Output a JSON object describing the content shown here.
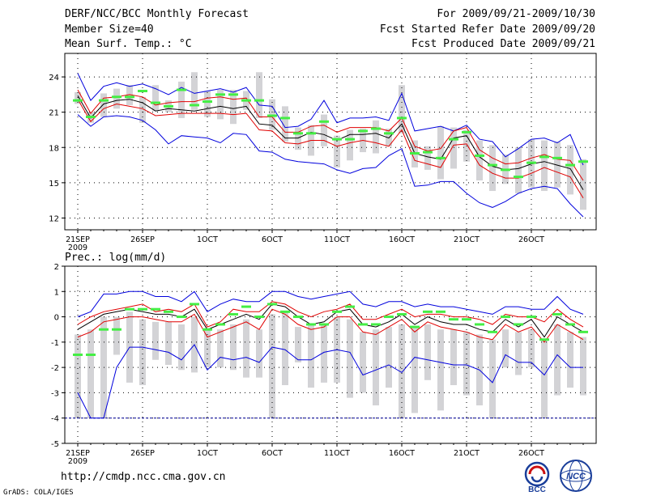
{
  "header": {
    "title": "DERF/NCC/BCC Monthly Forecast",
    "member_size": "Member Size=40",
    "variable": "Mean Surf. Temp.: °C",
    "period": "For 2009/09/21-2009/10/30",
    "start_date": "Fcst Started Refer Date 2009/09/20",
    "produced_date": "Fcst Produced Date 2009/09/21"
  },
  "footer": {
    "url": "http://cmdp.ncc.cma.gov.cn",
    "credit": "GrADS: COLA/IGES",
    "logo1_text": "BCC",
    "logo2_text": "NCC"
  },
  "colors": {
    "box": "#d3d3d6",
    "mean_line": "#000000",
    "spread_line": "#e00000",
    "extreme_line": "#0000dd",
    "median_mark": "#44ee44",
    "grid": "#000000",
    "threshold": "#000099"
  },
  "chart_data": [
    {
      "type": "box-ensemble",
      "title": "Mean Surf. Temp.: °C",
      "x_dates": [
        "09-21",
        "09-22",
        "09-23",
        "09-24",
        "09-25",
        "09-26",
        "09-27",
        "09-28",
        "09-29",
        "09-30",
        "10-01",
        "10-02",
        "10-03",
        "10-04",
        "10-05",
        "10-06",
        "10-07",
        "10-08",
        "10-09",
        "10-10",
        "10-11",
        "10-12",
        "10-13",
        "10-14",
        "10-15",
        "10-16",
        "10-17",
        "10-18",
        "10-19",
        "10-20",
        "10-21",
        "10-22",
        "10-23",
        "10-24",
        "10-25",
        "10-26",
        "10-27",
        "10-28",
        "10-29",
        "10-30"
      ],
      "tick_labels": [
        "21SEP",
        "26SEP",
        "1OCT",
        "6OCT",
        "11OCT",
        "16OCT",
        "21OCT",
        "26OCT"
      ],
      "tick_indices": [
        0,
        5,
        10,
        15,
        20,
        25,
        30,
        35
      ],
      "year_label": "2009",
      "ylim": [
        11,
        26
      ],
      "yticks": [
        12,
        15,
        18,
        21,
        24
      ],
      "series": [
        {
          "name": "max",
          "values": [
            24.3,
            22.0,
            23.2,
            23.5,
            23.2,
            23.4,
            23.0,
            22.5,
            23.1,
            22.6,
            22.8,
            23.0,
            22.7,
            23.1,
            21.6,
            21.5,
            19.7,
            19.8,
            20.4,
            22.0,
            20.1,
            20.5,
            20.5,
            20.6,
            20.3,
            22.6,
            19.4,
            19.6,
            19.8,
            19.4,
            19.9,
            18.7,
            18.5,
            17.2,
            17.9,
            18.7,
            18.8,
            18.4,
            19.1,
            16.5
          ]
        },
        {
          "name": "upper",
          "values": [
            22.9,
            20.9,
            22.2,
            22.3,
            22.5,
            22.3,
            21.6,
            21.8,
            21.9,
            21.9,
            22.2,
            22.3,
            22.1,
            22.2,
            20.6,
            20.6,
            19.3,
            19.3,
            19.8,
            19.9,
            19.3,
            19.7,
            19.7,
            19.7,
            19.4,
            20.5,
            18.1,
            17.7,
            17.9,
            19.4,
            19.7,
            17.8,
            17.1,
            16.6,
            16.7,
            17.1,
            17.4,
            17.0,
            16.9,
            15.2
          ]
        },
        {
          "name": "mean",
          "values": [
            22.4,
            20.5,
            21.7,
            22.0,
            22.1,
            21.8,
            21.1,
            21.3,
            21.2,
            21.1,
            21.3,
            21.5,
            21.3,
            21.5,
            20.0,
            19.9,
            18.8,
            18.8,
            19.3,
            19.1,
            18.6,
            19.1,
            19.1,
            19.2,
            18.8,
            20.0,
            17.5,
            17.2,
            17.0,
            18.8,
            19.0,
            17.2,
            16.4,
            16.1,
            16.2,
            16.6,
            16.8,
            16.5,
            16.2,
            14.4
          ]
        },
        {
          "name": "lower",
          "values": [
            22.1,
            20.2,
            21.3,
            21.7,
            21.5,
            21.3,
            20.7,
            20.8,
            20.9,
            20.9,
            20.9,
            20.9,
            20.8,
            20.9,
            19.5,
            19.4,
            18.4,
            18.3,
            18.6,
            18.6,
            18.1,
            18.4,
            18.6,
            18.4,
            18.1,
            19.5,
            16.9,
            16.6,
            16.3,
            18.2,
            18.3,
            16.5,
            15.8,
            15.4,
            15.4,
            15.8,
            16.3,
            15.9,
            15.5,
            13.7
          ]
        },
        {
          "name": "min",
          "values": [
            20.8,
            19.8,
            20.6,
            20.7,
            20.6,
            20.3,
            19.5,
            18.3,
            19.0,
            18.9,
            18.8,
            18.4,
            19.2,
            19.1,
            17.7,
            17.6,
            17.0,
            16.8,
            16.7,
            16.6,
            16.1,
            15.8,
            16.2,
            16.3,
            17.3,
            17.9,
            14.7,
            14.8,
            15.1,
            15.1,
            14.1,
            13.3,
            12.9,
            13.4,
            14.1,
            14.5,
            14.7,
            14.5,
            13.2,
            12.1
          ]
        },
        {
          "name": "box_top",
          "values": [
            22.7,
            21.0,
            22.6,
            23.0,
            23.3,
            22.3,
            23.3,
            22.0,
            23.6,
            24.4,
            22.8,
            22.9,
            22.9,
            22.8,
            24.4,
            22.1,
            21.5,
            19.7,
            19.9,
            20.8,
            19.0,
            19.5,
            19.6,
            20.3,
            19.6,
            23.3,
            18.6,
            18.1,
            19.8,
            19.7,
            19.5,
            18.6,
            18.2,
            17.4,
            18.0,
            18.7,
            18.6,
            18.5,
            18.2,
            17.0
          ]
        },
        {
          "name": "box_bottom",
          "values": [
            21.7,
            20.1,
            20.6,
            21.3,
            21.6,
            20.1,
            21.1,
            21.0,
            20.5,
            21.2,
            20.6,
            20.4,
            20.0,
            21.2,
            20.5,
            19.5,
            18.5,
            17.8,
            17.3,
            18.1,
            16.3,
            16.9,
            17.6,
            17.5,
            18.1,
            19.2,
            16.3,
            16.1,
            15.3,
            16.2,
            16.8,
            15.2,
            14.3,
            14.9,
            14.1,
            14.6,
            14.3,
            14.6,
            14.0,
            12.7
          ]
        },
        {
          "name": "median",
          "values": [
            22.0,
            20.6,
            22.0,
            22.3,
            22.3,
            22.8,
            21.8,
            21.5,
            22.9,
            21.6,
            21.9,
            22.5,
            22.5,
            22.0,
            22.0,
            20.7,
            20.5,
            19.2,
            19.2,
            20.2,
            18.7,
            18.7,
            19.4,
            19.6,
            19.2,
            20.5,
            17.5,
            17.6,
            17.1,
            18.7,
            19.3,
            17.3,
            16.5,
            16.1,
            15.5,
            16.7,
            17.2,
            17.1,
            16.5,
            16.8
          ]
        }
      ]
    },
    {
      "type": "box-ensemble",
      "title": "Prec.: log(mm/d)",
      "x_dates": [
        "09-21",
        "09-22",
        "09-23",
        "09-24",
        "09-25",
        "09-26",
        "09-27",
        "09-28",
        "09-29",
        "09-30",
        "10-01",
        "10-02",
        "10-03",
        "10-04",
        "10-05",
        "10-06",
        "10-07",
        "10-08",
        "10-09",
        "10-10",
        "10-11",
        "10-12",
        "10-13",
        "10-14",
        "10-15",
        "10-16",
        "10-17",
        "10-18",
        "10-19",
        "10-20",
        "10-21",
        "10-22",
        "10-23",
        "10-24",
        "10-25",
        "10-26",
        "10-27",
        "10-28",
        "10-29",
        "10-30"
      ],
      "tick_labels": [
        "21SEP",
        "26SEP",
        "1OCT",
        "6OCT",
        "11OCT",
        "16OCT",
        "21OCT",
        "26OCT"
      ],
      "tick_indices": [
        0,
        5,
        10,
        15,
        20,
        25,
        30,
        35
      ],
      "year_label": "2009",
      "ylim": [
        -5,
        2
      ],
      "yticks": [
        -5,
        -4,
        -3,
        -2,
        -1,
        0,
        1,
        2
      ],
      "threshold": -4,
      "series": [
        {
          "name": "max",
          "values": [
            0.0,
            0.2,
            0.9,
            0.9,
            1.0,
            1.0,
            0.8,
            0.8,
            0.6,
            1.0,
            0.2,
            0.5,
            0.7,
            0.6,
            0.6,
            1.0,
            1.0,
            0.8,
            0.7,
            0.8,
            0.9,
            1.0,
            0.5,
            0.4,
            0.6,
            0.6,
            0.4,
            0.5,
            0.4,
            0.4,
            0.3,
            0.2,
            0.1,
            0.4,
            0.4,
            0.3,
            0.3,
            0.8,
            0.3,
            0.1
          ]
        },
        {
          "name": "upper",
          "values": [
            -0.3,
            0.0,
            0.2,
            0.3,
            0.4,
            0.5,
            0.2,
            0.3,
            0.2,
            0.5,
            -0.4,
            -0.2,
            0.3,
            0.2,
            0.2,
            0.6,
            0.5,
            0.2,
            0.0,
            0.2,
            0.3,
            0.5,
            -0.1,
            -0.1,
            0.1,
            0.3,
            0.0,
            0.1,
            0.1,
            0.0,
            0.0,
            -0.1,
            -0.3,
            0.1,
            0.0,
            0.0,
            -0.2,
            0.3,
            -0.1,
            -0.4
          ]
        },
        {
          "name": "mean",
          "values": [
            -0.5,
            -0.2,
            0.1,
            0.2,
            0.3,
            0.2,
            0.1,
            0.1,
            0.0,
            0.3,
            -0.5,
            -0.3,
            -0.1,
            0.1,
            -0.1,
            0.5,
            0.4,
            0.0,
            -0.3,
            -0.2,
            0.2,
            0.3,
            -0.3,
            -0.4,
            -0.2,
            0.1,
            -0.3,
            0.0,
            -0.2,
            -0.3,
            -0.3,
            -0.5,
            -0.6,
            -0.1,
            -0.4,
            -0.1,
            -0.8,
            0.0,
            -0.3,
            -0.6
          ]
        },
        {
          "name": "lower",
          "values": [
            -0.8,
            -0.6,
            -0.2,
            -0.1,
            0.0,
            0.0,
            -0.1,
            -0.2,
            -0.2,
            0.1,
            -0.8,
            -0.6,
            -0.4,
            -0.2,
            -0.5,
            0.3,
            0.1,
            -0.3,
            -0.5,
            -0.4,
            0.0,
            0.0,
            -0.6,
            -0.7,
            -0.4,
            -0.1,
            -0.6,
            -0.2,
            -0.4,
            -0.5,
            -0.6,
            -0.8,
            -0.9,
            -0.3,
            -0.6,
            -0.4,
            -1.0,
            -0.3,
            -0.6,
            -0.9
          ]
        },
        {
          "name": "min",
          "values": [
            -3.0,
            -4.0,
            -4.0,
            -2.0,
            -1.2,
            -1.2,
            -1.3,
            -1.4,
            -1.7,
            -1.1,
            -2.1,
            -1.6,
            -1.7,
            -1.6,
            -1.8,
            -1.2,
            -1.3,
            -1.7,
            -1.7,
            -1.4,
            -1.3,
            -1.4,
            -2.3,
            -2.1,
            -1.9,
            -2.2,
            -1.6,
            -1.7,
            -1.8,
            -1.9,
            -1.9,
            -2.1,
            -2.6,
            -1.5,
            -1.8,
            -1.8,
            -2.3,
            -1.5,
            -2.0,
            -2.0
          ]
        },
        {
          "name": "box_top",
          "values": [
            -0.7,
            -0.5,
            0.0,
            0.0,
            0.2,
            -0.1,
            -0.2,
            -0.2,
            -0.3,
            0.0,
            -0.5,
            -0.5,
            -0.3,
            -0.1,
            -0.5,
            0.1,
            0.2,
            -0.4,
            -0.3,
            -0.3,
            0.0,
            -0.1,
            -0.6,
            -0.5,
            -0.4,
            -0.3,
            -0.4,
            -0.3,
            -0.5,
            -0.5,
            -0.6,
            -0.7,
            -0.9,
            -0.5,
            -0.6,
            -0.5,
            -0.9,
            -0.3,
            -0.6,
            -0.8
          ]
        },
        {
          "name": "box_bottom",
          "values": [
            -4.0,
            -4.0,
            -4.0,
            -1.5,
            -2.6,
            -2.7,
            -1.7,
            -1.9,
            -2.1,
            -2.2,
            -2.0,
            -2.0,
            -2.1,
            -2.4,
            -2.4,
            -4.0,
            -2.7,
            -1.8,
            -2.8,
            -2.6,
            -2.6,
            -3.2,
            -3.0,
            -3.5,
            -2.8,
            -4.0,
            -3.8,
            -2.5,
            -3.7,
            -2.7,
            -3.1,
            -3.5,
            -4.0,
            -2.0,
            -2.3,
            -2.0,
            -4.0,
            -3.1,
            -2.8,
            -3.1
          ]
        },
        {
          "name": "median",
          "values": [
            -1.5,
            -1.5,
            -0.5,
            -0.5,
            0.3,
            0.3,
            0.3,
            0.2,
            0.0,
            0.5,
            -0.5,
            -0.3,
            0.1,
            0.4,
            0.0,
            0.5,
            0.2,
            0.0,
            -0.3,
            -0.3,
            0.2,
            0.4,
            -0.3,
            -0.3,
            0.0,
            0.1,
            -0.4,
            0.2,
            0.2,
            -0.1,
            -0.1,
            -0.3,
            -0.6,
            0.0,
            -0.3,
            0.0,
            -0.9,
            0.1,
            -0.3,
            -0.6
          ]
        }
      ]
    }
  ]
}
